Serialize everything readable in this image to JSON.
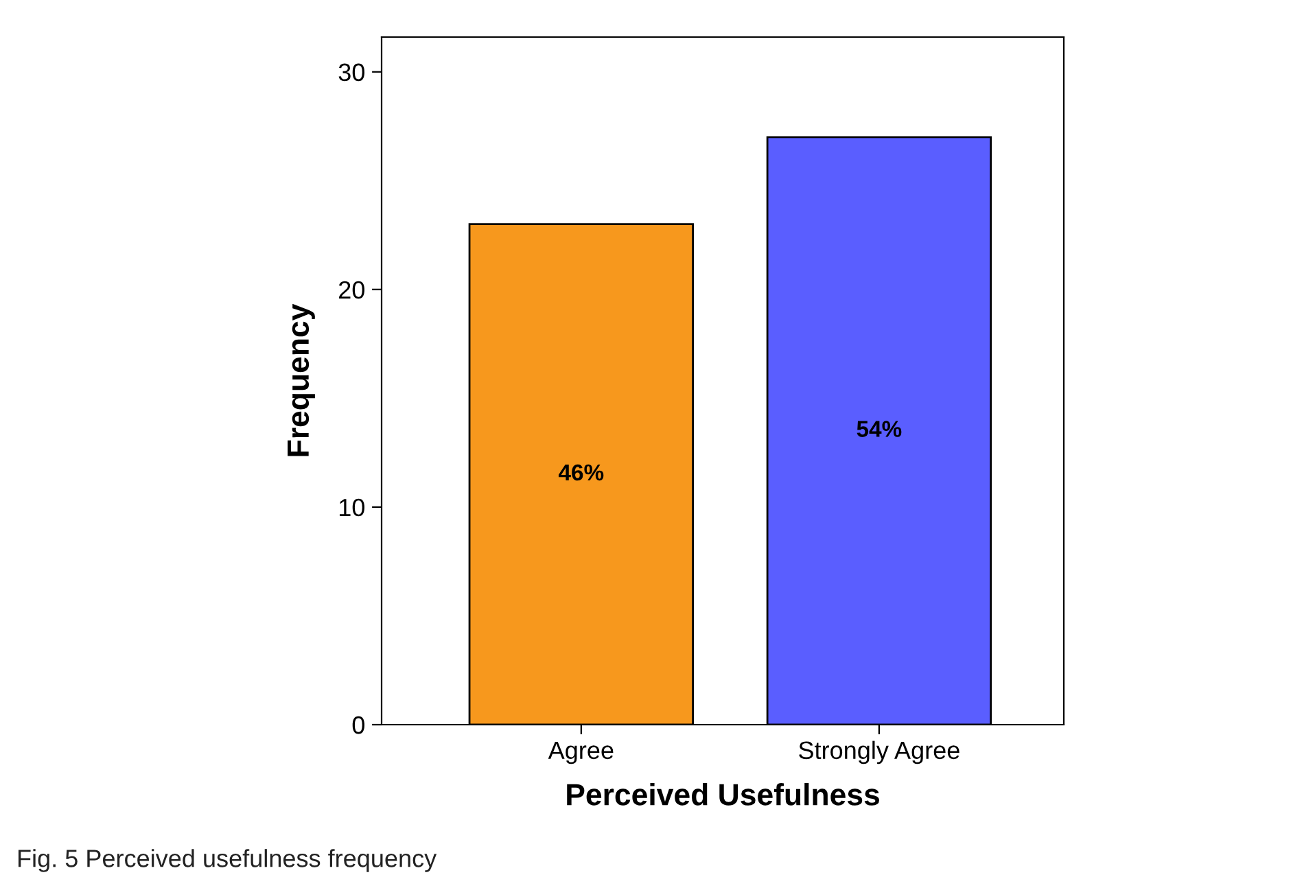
{
  "chart_data": {
    "type": "bar",
    "categories": [
      "Agree",
      "Strongly Agree"
    ],
    "values": [
      23,
      27
    ],
    "colors": [
      "#f7981d",
      "#5a5eff"
    ],
    "xlabel": "Perceived Usefulness",
    "ylabel": "Frequency",
    "ylim": [
      0,
      31.6
    ],
    "yticks": [
      0,
      10,
      20,
      30
    ],
    "grid": false,
    "legend": false,
    "annotations": [
      "46%",
      "54%",
      "Fig. 5 Perceived usefulness frequency"
    ]
  }
}
